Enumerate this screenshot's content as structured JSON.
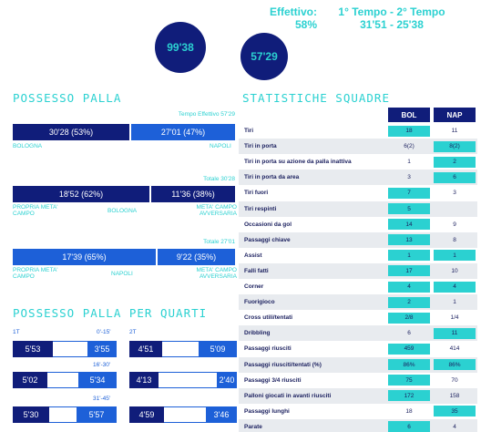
{
  "top": {
    "effettivo_label": "Effettivo:",
    "effettivo_value": "58%",
    "tempi_label": "1° Tempo - 2° Tempo",
    "tempi_value": "31'51 - 25'38"
  },
  "circles": {
    "total": "99'38",
    "effective": "57'29"
  },
  "possesso": {
    "title": "POSSESSO PALLA",
    "effective_caption": "Tempo Effettivo 57'29",
    "row1": {
      "left": "30'28 (53%)",
      "right": "27'01 (47%)",
      "left_share": 0.53,
      "left_label": "BOLOGNA",
      "right_label": "NAPOLI"
    },
    "caption2": "Totale 30'28",
    "row2": {
      "left": "18'52 (62%)",
      "right": "11'36 (38%)",
      "left_share": 0.62,
      "left_label": "PROPRIA META' CAMPO",
      "center_label": "BOLOGNA",
      "right_label": "META' CAMPO AVVERSARIA"
    },
    "caption3": "Totale 27'01",
    "row3": {
      "left": "17'39 (65%)",
      "right": "9'22 (35%)",
      "left_share": 0.65,
      "left_label": "PROPRIA META' CAMPO",
      "center_label": "NAPOLI",
      "right_label": "META' CAMPO AVVERSARIA"
    }
  },
  "quarti": {
    "title": "POSSESSO PALLA PER QUARTI",
    "first_half": "1T",
    "second_half": "2T",
    "rows": [
      {
        "label": "0'-15'",
        "a1": "5'53",
        "b1": "3'55",
        "a2": "4'51",
        "b2": "5'09"
      },
      {
        "label": "16'-30'",
        "a1": "5'02",
        "b1": "5'34",
        "a2": "4'13",
        "b2": "2'40"
      },
      {
        "label": "31'-45'",
        "a1": "5'30",
        "b1": "5'57",
        "a2": "4'59",
        "b2": "3'46"
      }
    ]
  },
  "stats": {
    "title": "STATISTICHE SQUADRE",
    "col1": "BOL",
    "col2": "NAP",
    "rows": [
      {
        "name": "Tiri",
        "v1": "18",
        "v2": "11",
        "hl": 1
      },
      {
        "name": "Tiri in porta",
        "v1": "6(2)",
        "v2": "8(2)",
        "hl": 2
      },
      {
        "name": "Tiri in porta su azione da palla inattiva",
        "v1": "1",
        "v2": "2",
        "hl": 2
      },
      {
        "name": "Tiri in porta da area",
        "v1": "3",
        "v2": "6",
        "hl": 2
      },
      {
        "name": "Tiri fuori",
        "v1": "7",
        "v2": "3",
        "hl": 1
      },
      {
        "name": "Tiri respinti",
        "v1": "5",
        "v2": "",
        "hl": 1
      },
      {
        "name": "Occasioni da gol",
        "v1": "14",
        "v2": "9",
        "hl": 1
      },
      {
        "name": "Passaggi chiave",
        "v1": "13",
        "v2": "8",
        "hl": 1
      },
      {
        "name": "Assist",
        "v1": "1",
        "v2": "1",
        "hl": 3
      },
      {
        "name": "Falli fatti",
        "v1": "17",
        "v2": "10",
        "hl": 1
      },
      {
        "name": "Corner",
        "v1": "4",
        "v2": "4",
        "hl": 3
      },
      {
        "name": "Fuorigioco",
        "v1": "2",
        "v2": "1",
        "hl": 1
      },
      {
        "name": "Cross utili/tentati",
        "v1": "2/8",
        "v2": "1/4",
        "hl": 1
      },
      {
        "name": "Dribbling",
        "v1": "6",
        "v2": "11",
        "hl": 2
      },
      {
        "name": "Passaggi riusciti",
        "v1": "459",
        "v2": "414",
        "hl": 1
      },
      {
        "name": "Passaggi riusciti/tentati (%)",
        "v1": "86%",
        "v2": "86%",
        "hl": 3
      },
      {
        "name": "Passaggi 3/4 riusciti",
        "v1": "75",
        "v2": "70",
        "hl": 1
      },
      {
        "name": "Palloni giocati in avanti riusciti",
        "v1": "172",
        "v2": "158",
        "hl": 1
      },
      {
        "name": "Passaggi lunghi",
        "v1": "18",
        "v2": "35",
        "hl": 2
      },
      {
        "name": "Parate",
        "v1": "6",
        "v2": "4",
        "hl": 1
      }
    ]
  },
  "colors": {
    "navy": "#101d7a",
    "blue": "#1d60d8",
    "cyan": "#2bd1d1",
    "row_alt": "#e8ebef"
  }
}
